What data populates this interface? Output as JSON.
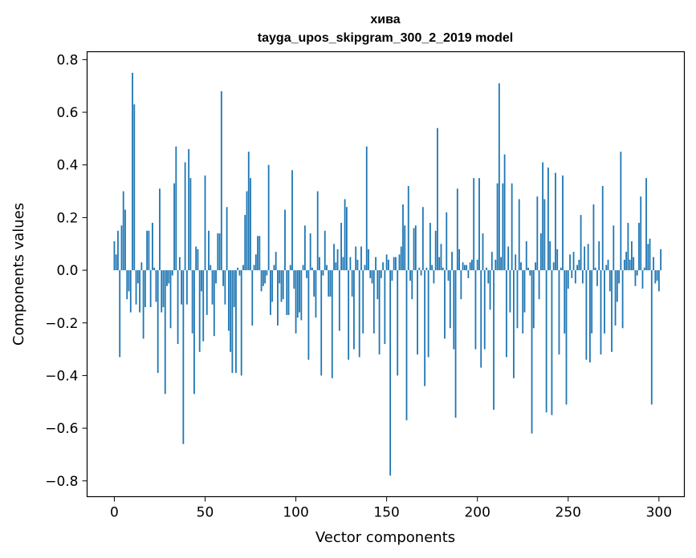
{
  "chart_data": {
    "type": "bar",
    "title": "хива",
    "subtitle": "tayga_upos_skipgram_300_2_2019 model",
    "xlabel": "Vector components",
    "ylabel": "Components values",
    "xlim": [
      -15,
      314
    ],
    "ylim": [
      -0.86,
      0.83
    ],
    "xticks": [
      0,
      50,
      100,
      150,
      200,
      250,
      300
    ],
    "xtick_labels": [
      "0",
      "50",
      "100",
      "150",
      "200",
      "250",
      "300"
    ],
    "yticks": [
      -0.8,
      -0.6,
      -0.4,
      -0.2,
      0.0,
      0.2,
      0.4,
      0.6,
      0.8
    ],
    "ytick_labels": [
      "−0.8",
      "−0.6",
      "−0.4",
      "−0.2",
      "0.0",
      "0.2",
      "0.4",
      "0.6",
      "0.8"
    ],
    "grid": false,
    "bar_color": "#1f77b4",
    "x_start": 0,
    "values": [
      0.11,
      0.06,
      0.15,
      -0.33,
      0.17,
      0.3,
      0.23,
      -0.11,
      -0.08,
      -0.16,
      0.75,
      0.63,
      -0.13,
      -0.05,
      -0.16,
      0.03,
      -0.26,
      -0.14,
      0.15,
      0.15,
      -0.14,
      0.18,
      0.01,
      -0.12,
      -0.39,
      0.31,
      -0.16,
      -0.14,
      -0.47,
      -0.06,
      -0.05,
      -0.22,
      -0.02,
      0.33,
      0.47,
      -0.28,
      0.05,
      -0.13,
      -0.66,
      0.41,
      -0.13,
      0.46,
      0.35,
      -0.24,
      -0.47,
      0.09,
      0.08,
      -0.31,
      -0.08,
      -0.27,
      0.36,
      -0.17,
      0.15,
      0.02,
      -0.13,
      -0.25,
      -0.05,
      0.14,
      0.14,
      0.68,
      -0.06,
      -0.13,
      0.24,
      -0.23,
      -0.31,
      -0.39,
      -0.14,
      -0.39,
      0.01,
      -0.02,
      -0.4,
      0.02,
      0.21,
      0.3,
      0.45,
      0.35,
      -0.21,
      0.02,
      0.06,
      0.13,
      0.13,
      -0.08,
      -0.06,
      -0.05,
      -0.02,
      0.4,
      -0.17,
      -0.12,
      0.02,
      0.07,
      -0.21,
      -0.05,
      -0.12,
      -0.11,
      0.23,
      -0.17,
      -0.17,
      0.02,
      0.38,
      -0.07,
      -0.24,
      -0.18,
      -0.16,
      -0.19,
      0.02,
      0.17,
      -0.03,
      -0.34,
      0.14,
      0.01,
      -0.1,
      -0.18,
      0.3,
      0.05,
      -0.4,
      -0.02,
      0.15,
      0.02,
      -0.1,
      -0.1,
      -0.41,
      0.1,
      0.03,
      0.08,
      -0.23,
      0.18,
      0.05,
      0.27,
      0.24,
      -0.34,
      0.05,
      -0.1,
      -0.3,
      0.09,
      0.04,
      -0.33,
      0.09,
      -0.24,
      0.02,
      0.47,
      0.08,
      -0.03,
      -0.05,
      -0.24,
      0.05,
      -0.11,
      -0.32,
      -0.03,
      0.03,
      -0.28,
      0.06,
      0.04,
      -0.78,
      -0.04,
      0.05,
      0.05,
      -0.4,
      0.06,
      0.09,
      0.25,
      0.17,
      -0.57,
      0.32,
      -0.04,
      -0.11,
      0.16,
      0.17,
      -0.32,
      0.01,
      -0.02,
      0.24,
      -0.44,
      0.01,
      -0.33,
      0.18,
      0.02,
      -0.05,
      0.15,
      0.54,
      0.05,
      0.1,
      0.01,
      -0.26,
      0.22,
      -0.04,
      -0.22,
      0.07,
      -0.3,
      -0.56,
      0.31,
      0.08,
      -0.11,
      0.03,
      0.02,
      0.02,
      -0.03,
      0.03,
      0.04,
      0.35,
      -0.3,
      0.04,
      0.35,
      -0.37,
      0.14,
      -0.3,
      0.01,
      -0.05,
      -0.15,
      0.07,
      -0.53,
      0.04,
      0.33,
      0.71,
      0.05,
      0.33,
      0.44,
      -0.33,
      0.09,
      -0.16,
      0.33,
      -0.41,
      0.06,
      -0.22,
      0.27,
      0.03,
      -0.24,
      -0.16,
      0.11,
      0.01,
      -0.02,
      -0.62,
      -0.22,
      0.03,
      0.28,
      -0.11,
      0.14,
      0.41,
      0.27,
      -0.54,
      0.39,
      0.11,
      -0.55,
      0.03,
      0.37,
      0.08,
      -0.32,
      0.01,
      0.36,
      -0.24,
      -0.51,
      -0.07,
      0.06,
      -0.03,
      0.07,
      -0.05,
      0.02,
      0.04,
      0.21,
      -0.05,
      0.09,
      -0.34,
      0.1,
      -0.35,
      -0.24,
      0.25,
      0.01,
      -0.06,
      0.11,
      -0.32,
      0.32,
      -0.24,
      0.02,
      0.04,
      -0.08,
      -0.31,
      0.17,
      -0.21,
      -0.12,
      -0.05,
      0.45,
      -0.22,
      0.04,
      0.07,
      0.18,
      0.04,
      0.11,
      0.05,
      -0.06,
      -0.02,
      0.18,
      0.28,
      -0.07,
      0.01,
      0.35,
      0.1,
      0.12,
      -0.51,
      0.05,
      -0.05,
      -0.04,
      -0.08,
      0.08
    ]
  }
}
